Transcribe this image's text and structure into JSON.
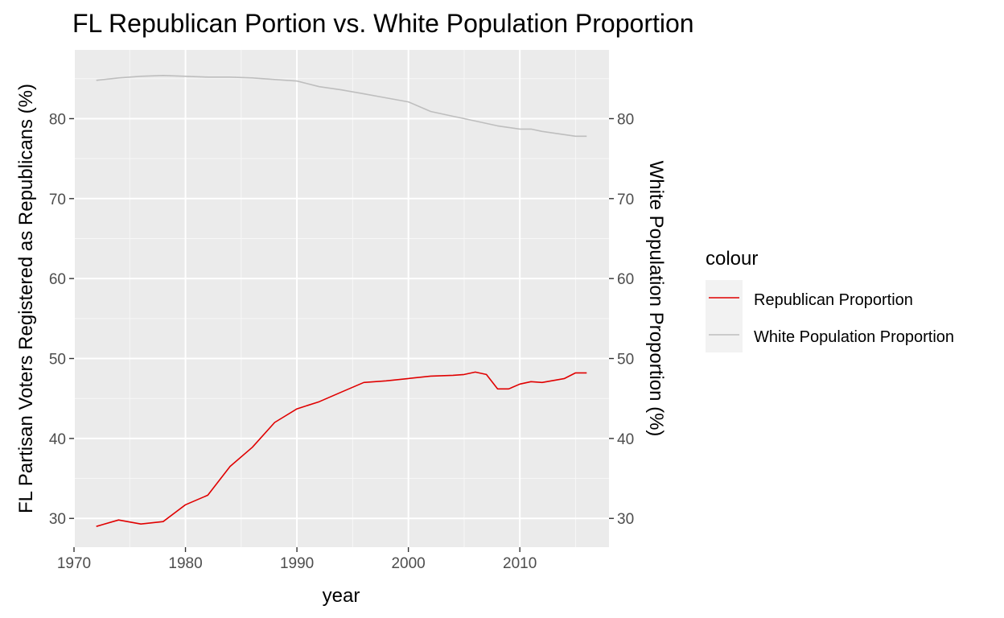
{
  "chart_data": {
    "type": "line",
    "title": "FL Republican Portion vs. White Population Proportion",
    "xlabel": "year",
    "ylabel": "FL Partisan Voters Registered as Republicans (%)",
    "ylabel_right": "White Population Proportion (%)",
    "xlim": [
      1970,
      2018
    ],
    "ylim": [
      26.4,
      88.6
    ],
    "x_ticks": [
      1970,
      1980,
      1990,
      2000,
      2010
    ],
    "y_ticks": [
      30,
      40,
      50,
      60,
      70,
      80
    ],
    "grid": true,
    "legend": {
      "title": "colour",
      "position": "right"
    },
    "x": [
      1972,
      1974,
      1976,
      1978,
      1980,
      1982,
      1984,
      1986,
      1988,
      1990,
      1992,
      1994,
      1996,
      1998,
      2000,
      2002,
      2004,
      2005,
      2006,
      2007,
      2008,
      2009,
      2010,
      2011,
      2012,
      2014,
      2015,
      2016
    ],
    "series": [
      {
        "name": "Republican Proportion",
        "color": "#e00000",
        "values": [
          29.0,
          29.8,
          29.3,
          29.6,
          31.7,
          32.9,
          36.5,
          38.9,
          42.0,
          43.7,
          44.6,
          45.8,
          47.0,
          47.2,
          47.5,
          47.8,
          47.9,
          48.0,
          48.3,
          48.0,
          46.2,
          46.2,
          46.8,
          47.1,
          47.0,
          47.5,
          48.2,
          48.2
        ]
      },
      {
        "name": "White Population Proportion",
        "color": "#bebebe",
        "values": [
          84.8,
          85.1,
          85.3,
          85.4,
          85.3,
          85.2,
          85.2,
          85.1,
          84.9,
          84.7,
          84.0,
          83.6,
          83.1,
          82.6,
          82.1,
          80.9,
          80.3,
          80.0,
          79.7,
          79.4,
          79.1,
          78.9,
          78.7,
          78.7,
          78.4,
          78.0,
          77.8,
          77.8
        ]
      }
    ]
  }
}
